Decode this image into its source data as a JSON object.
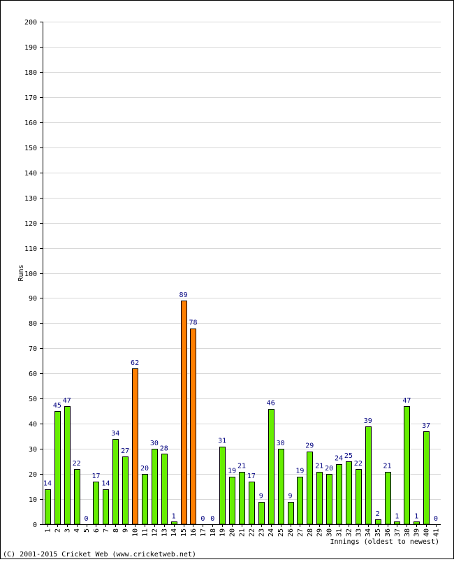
{
  "chart_data": {
    "type": "bar",
    "title": "",
    "ylabel": "Runs",
    "xlabel": "Innings (oldest to newest)",
    "ylim": [
      0,
      200
    ],
    "ytick_step": 10,
    "grid": true,
    "categories": [
      "1",
      "2",
      "3",
      "4",
      "5",
      "6",
      "7",
      "8",
      "9",
      "10",
      "11",
      "12",
      "13",
      "14",
      "15",
      "16",
      "17",
      "18",
      "19",
      "20",
      "21",
      "22",
      "23",
      "24",
      "25",
      "26",
      "27",
      "28",
      "29",
      "30",
      "31",
      "32",
      "33",
      "34",
      "35",
      "36",
      "37",
      "38",
      "39",
      "40",
      "41"
    ],
    "values": [
      14,
      45,
      47,
      22,
      0,
      17,
      14,
      34,
      27,
      62,
      20,
      30,
      28,
      1,
      89,
      78,
      0,
      0,
      31,
      19,
      21,
      17,
      9,
      46,
      30,
      9,
      19,
      29,
      21,
      20,
      24,
      25,
      22,
      39,
      2,
      21,
      1,
      47,
      1,
      37,
      0
    ],
    "highlight_threshold": 50,
    "colors": {
      "normal": "#66ee00",
      "highlight": "#ff7f00",
      "bar_outline": "#000000",
      "grid": "#d8d8d8",
      "axis": "#000000",
      "data_label": "#00007f"
    }
  },
  "footer": {
    "credit": "(C) 2001-2015 Cricket Web (www.cricketweb.net)"
  }
}
